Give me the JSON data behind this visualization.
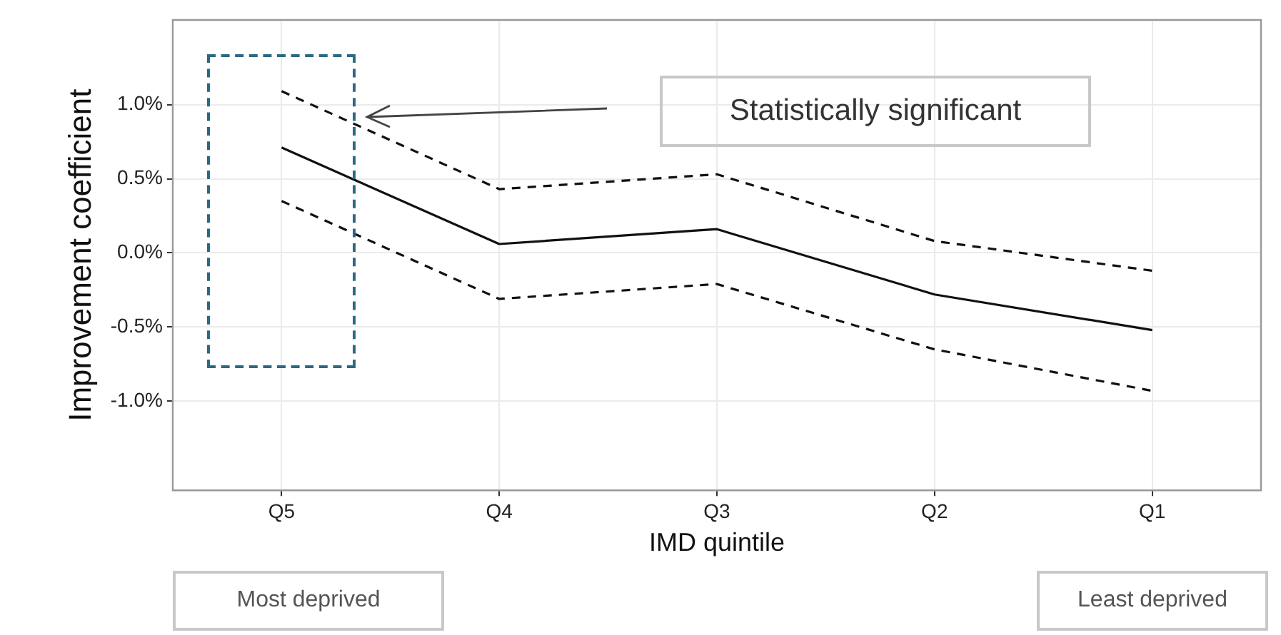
{
  "chart_data": {
    "type": "line",
    "xlabel": "IMD quintile",
    "ylabel": "Improvement coefficient",
    "categories": [
      "Q5",
      "Q4",
      "Q3",
      "Q2",
      "Q1"
    ],
    "series": [
      {
        "color": "#111111",
        "values": [
          0.71,
          0.06,
          0.16,
          -0.28,
          -0.52
        ]
      },
      {
        "color": "#111111",
        "values": [
          1.09,
          0.43,
          0.53,
          0.08,
          -0.12
        ],
        "line_style": "dashed"
      },
      {
        "color": "#111111",
        "values": [
          0.35,
          -0.31,
          -0.21,
          -0.65,
          -0.93
        ],
        "line_style": "dashed"
      }
    ],
    "ylim": [
      -1.6,
      1.57
    ],
    "yticks": [
      {
        "value": -1,
        "label": "-1.0%"
      },
      {
        "value": -0.5,
        "label": "-0.5%"
      },
      {
        "value": 0,
        "label": "0.0%"
      },
      {
        "value": 0.5,
        "label": "0.5%"
      },
      {
        "value": 1,
        "label": "1.0%"
      }
    ],
    "grid": true,
    "marker": "none",
    "line_style": "solid",
    "annotations": [
      "Statistically significant",
      "Most deprived",
      "Least deprived"
    ]
  }
}
